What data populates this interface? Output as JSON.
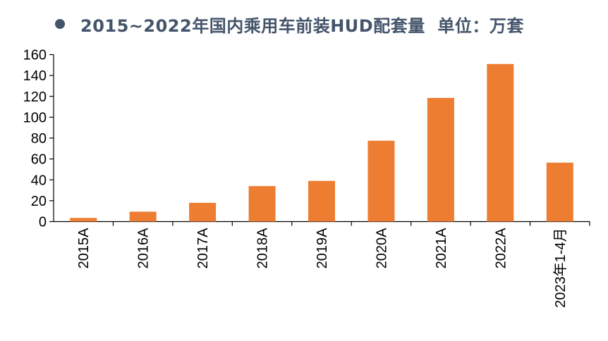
{
  "title": "2015~2022年国内乘用车前装HUD配套量  单位：万套",
  "colors": {
    "bar": "#ED7D31",
    "title": "#44546A",
    "bullet": "#44546A",
    "axis": "#000000"
  },
  "chart_data": {
    "type": "bar",
    "title": "2015~2022年国内乘用车前装HUD配套量  单位：万套",
    "categories": [
      "2015A",
      "2016A",
      "2017A",
      "2018A",
      "2019A",
      "2020A",
      "2021A",
      "2022A",
      "2023年1-4月"
    ],
    "values": [
      3.5,
      9.5,
      18,
      34,
      39,
      77.5,
      118.5,
      151,
      56.5
    ],
    "xlabel": "",
    "ylabel": "",
    "ylim": [
      0,
      160
    ],
    "yticks": [
      0,
      20,
      40,
      60,
      80,
      100,
      120,
      140,
      160
    ],
    "grid": false,
    "legend": "none"
  }
}
